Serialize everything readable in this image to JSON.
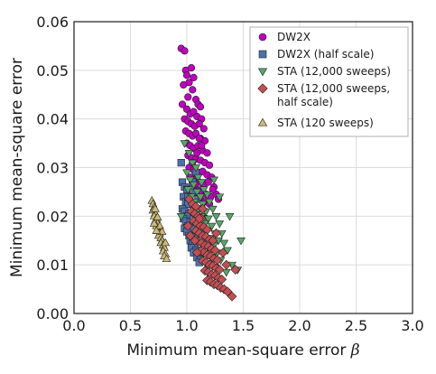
{
  "chart_data": {
    "type": "scatter",
    "xlabel": "Minimum mean-square error",
    "xlabel_symbol": "β",
    "ylabel": "Minimum mean-square error",
    "xlim": [
      0.0,
      3.0
    ],
    "ylim": [
      0.0,
      0.06
    ],
    "x_ticks": [
      "0.0",
      "0.5",
      "1.0",
      "1.5",
      "2.0",
      "2.5",
      "3.0"
    ],
    "y_ticks": [
      "0.00",
      "0.01",
      "0.02",
      "0.03",
      "0.04",
      "0.05",
      "0.06"
    ],
    "grid": true,
    "legend_position": "top-right",
    "series": [
      {
        "name": "DW2X",
        "marker": "circle",
        "color": "#bf00bf",
        "points": [
          [
            0.95,
            0.0545
          ],
          [
            0.98,
            0.054
          ],
          [
            0.99,
            0.05
          ],
          [
            1.0,
            0.049
          ],
          [
            1.02,
            0.0475
          ],
          [
            1.04,
            0.0505
          ],
          [
            1.05,
            0.046
          ],
          [
            1.06,
            0.0485
          ],
          [
            1.01,
            0.0445
          ],
          [
            0.97,
            0.047
          ],
          [
            1.08,
            0.044
          ],
          [
            1.1,
            0.043
          ],
          [
            1.12,
            0.0425
          ],
          [
            0.96,
            0.043
          ],
          [
            1.0,
            0.042
          ],
          [
            1.03,
            0.041
          ],
          [
            1.06,
            0.0415
          ],
          [
            1.09,
            0.0405
          ],
          [
            1.13,
            0.04
          ],
          [
            0.98,
            0.04
          ],
          [
            1.01,
            0.0395
          ],
          [
            1.04,
            0.039
          ],
          [
            1.07,
            0.0385
          ],
          [
            1.11,
            0.039
          ],
          [
            1.15,
            0.038
          ],
          [
            0.99,
            0.0375
          ],
          [
            1.02,
            0.037
          ],
          [
            1.05,
            0.0365
          ],
          [
            1.08,
            0.037
          ],
          [
            1.12,
            0.036
          ],
          [
            1.16,
            0.0355
          ],
          [
            1.0,
            0.035
          ],
          [
            1.03,
            0.0345
          ],
          [
            1.06,
            0.034
          ],
          [
            1.1,
            0.0345
          ],
          [
            1.14,
            0.0335
          ],
          [
            1.18,
            0.033
          ],
          [
            1.01,
            0.0325
          ],
          [
            1.04,
            0.032
          ],
          [
            1.08,
            0.0318
          ],
          [
            1.12,
            0.0315
          ],
          [
            1.16,
            0.031
          ],
          [
            1.2,
            0.0305
          ],
          [
            1.02,
            0.03
          ],
          [
            1.06,
            0.0295
          ],
          [
            1.1,
            0.029
          ],
          [
            1.14,
            0.0292
          ],
          [
            1.18,
            0.0285
          ],
          [
            1.22,
            0.028
          ],
          [
            1.07,
            0.0275
          ],
          [
            1.11,
            0.027
          ],
          [
            1.15,
            0.0265
          ],
          [
            1.19,
            0.027
          ],
          [
            1.24,
            0.026
          ],
          [
            1.09,
            0.0255
          ],
          [
            1.13,
            0.025
          ],
          [
            1.17,
            0.0245
          ],
          [
            1.21,
            0.024
          ],
          [
            1.26,
            0.0245
          ],
          [
            1.12,
            0.0235
          ],
          [
            1.16,
            0.023
          ],
          [
            1.2,
            0.0225
          ],
          [
            1.05,
            0.031
          ],
          [
            1.09,
            0.033
          ],
          [
            1.13,
            0.0345
          ],
          [
            1.03,
            0.028
          ],
          [
            1.07,
            0.0265
          ],
          [
            1.23,
            0.0255
          ],
          [
            1.28,
            0.0235
          ],
          [
            1.11,
            0.036
          ]
        ]
      },
      {
        "name": "DW2X (half scale)",
        "marker": "square",
        "color": "#4c72b0",
        "points": [
          [
            0.95,
            0.031
          ],
          [
            0.96,
            0.027
          ],
          [
            0.98,
            0.026
          ],
          [
            1.0,
            0.0255
          ],
          [
            0.97,
            0.024
          ],
          [
            0.99,
            0.023
          ],
          [
            1.01,
            0.0225
          ],
          [
            0.96,
            0.0215
          ],
          [
            0.98,
            0.021
          ],
          [
            1.02,
            0.0205
          ],
          [
            1.0,
            0.02
          ],
          [
            0.97,
            0.0195
          ],
          [
            0.99,
            0.019
          ],
          [
            1.03,
            0.0188
          ],
          [
            1.01,
            0.018
          ],
          [
            0.98,
            0.0175
          ],
          [
            1.04,
            0.0172
          ],
          [
            1.0,
            0.0168
          ],
          [
            1.02,
            0.016
          ],
          [
            1.06,
            0.0158
          ],
          [
            1.03,
            0.015
          ],
          [
            1.05,
            0.0145
          ],
          [
            1.07,
            0.014
          ],
          [
            1.04,
            0.0135
          ],
          [
            1.08,
            0.013
          ],
          [
            1.06,
            0.0125
          ],
          [
            1.1,
            0.012
          ],
          [
            1.09,
            0.0115
          ],
          [
            1.12,
            0.011
          ],
          [
            1.11,
            0.0105
          ],
          [
            1.05,
            0.027
          ],
          [
            1.08,
            0.029
          ],
          [
            1.07,
            0.025
          ],
          [
            1.1,
            0.0235
          ],
          [
            1.13,
            0.0215
          ],
          [
            1.15,
            0.0195
          ],
          [
            1.14,
            0.017
          ],
          [
            1.01,
            0.024
          ],
          [
            1.06,
            0.0215
          ],
          [
            1.09,
            0.019
          ]
        ]
      },
      {
        "name": "STA (12,000 sweeps)",
        "marker": "triangle-down",
        "color": "#55a868",
        "points": [
          [
            0.98,
            0.035
          ],
          [
            1.02,
            0.033
          ],
          [
            1.05,
            0.031
          ],
          [
            1.0,
            0.029
          ],
          [
            1.08,
            0.03
          ],
          [
            1.03,
            0.0275
          ],
          [
            1.1,
            0.028
          ],
          [
            1.06,
            0.0265
          ],
          [
            1.13,
            0.027
          ],
          [
            1.01,
            0.0255
          ],
          [
            1.09,
            0.025
          ],
          [
            1.15,
            0.0255
          ],
          [
            1.04,
            0.024
          ],
          [
            1.12,
            0.024
          ],
          [
            1.18,
            0.0245
          ],
          [
            1.07,
            0.023
          ],
          [
            1.14,
            0.0225
          ],
          [
            1.2,
            0.023
          ],
          [
            1.1,
            0.0215
          ],
          [
            1.17,
            0.021
          ],
          [
            1.23,
            0.0215
          ],
          [
            1.13,
            0.02
          ],
          [
            1.19,
            0.0195
          ],
          [
            1.26,
            0.02
          ],
          [
            1.16,
            0.0185
          ],
          [
            1.22,
            0.018
          ],
          [
            1.29,
            0.0185
          ],
          [
            1.18,
            0.017
          ],
          [
            1.25,
            0.0165
          ],
          [
            1.31,
            0.0165
          ],
          [
            1.21,
            0.0155
          ],
          [
            1.28,
            0.015
          ],
          [
            1.15,
            0.0145
          ],
          [
            1.24,
            0.014
          ],
          [
            1.33,
            0.0145
          ],
          [
            1.2,
            0.013
          ],
          [
            1.27,
            0.0125
          ],
          [
            1.36,
            0.013
          ],
          [
            1.22,
            0.0115
          ],
          [
            1.3,
            0.011
          ],
          [
            1.4,
            0.01
          ],
          [
            1.45,
            0.009
          ],
          [
            1.18,
            0.01
          ],
          [
            1.25,
            0.0095
          ],
          [
            1.35,
            0.0085
          ],
          [
            1.48,
            0.015
          ],
          [
            1.24,
            0.0275
          ],
          [
            1.29,
            0.024
          ],
          [
            1.38,
            0.02
          ],
          [
            0.95,
            0.02
          ]
        ]
      },
      {
        "name": "STA (12,000 sweeps,\nhalf scale)",
        "marker": "diamond",
        "color": "#c44e52",
        "points": [
          [
            1.02,
            0.0235
          ],
          [
            1.05,
            0.0225
          ],
          [
            1.08,
            0.022
          ],
          [
            1.04,
            0.021
          ],
          [
            1.07,
            0.0205
          ],
          [
            1.1,
            0.02
          ],
          [
            1.13,
            0.0195
          ],
          [
            1.06,
            0.019
          ],
          [
            1.09,
            0.0185
          ],
          [
            1.12,
            0.018
          ],
          [
            1.15,
            0.0178
          ],
          [
            1.18,
            0.0172
          ],
          [
            1.08,
            0.017
          ],
          [
            1.11,
            0.0165
          ],
          [
            1.14,
            0.016
          ],
          [
            1.17,
            0.0158
          ],
          [
            1.2,
            0.0152
          ],
          [
            1.23,
            0.015
          ],
          [
            1.1,
            0.0148
          ],
          [
            1.13,
            0.0145
          ],
          [
            1.16,
            0.014
          ],
          [
            1.19,
            0.0138
          ],
          [
            1.22,
            0.0133
          ],
          [
            1.25,
            0.013
          ],
          [
            1.12,
            0.0128
          ],
          [
            1.15,
            0.0125
          ],
          [
            1.18,
            0.012
          ],
          [
            1.21,
            0.0118
          ],
          [
            1.24,
            0.0113
          ],
          [
            1.27,
            0.011
          ],
          [
            1.14,
            0.0108
          ],
          [
            1.17,
            0.0105
          ],
          [
            1.2,
            0.01
          ],
          [
            1.23,
            0.0098
          ],
          [
            1.26,
            0.0093
          ],
          [
            1.29,
            0.009
          ],
          [
            1.16,
            0.0088
          ],
          [
            1.19,
            0.0085
          ],
          [
            1.22,
            0.008
          ],
          [
            1.25,
            0.0078
          ],
          [
            1.28,
            0.0073
          ],
          [
            1.31,
            0.007
          ],
          [
            1.18,
            0.0068
          ],
          [
            1.21,
            0.0065
          ],
          [
            1.24,
            0.006
          ],
          [
            1.27,
            0.0058
          ],
          [
            1.3,
            0.0053
          ],
          [
            1.33,
            0.005
          ],
          [
            1.36,
            0.0045
          ],
          [
            1.4,
            0.0035
          ],
          [
            1.43,
            0.009
          ],
          [
            1.11,
            0.0195
          ],
          [
            1.14,
            0.0215
          ],
          [
            1.26,
            0.0165
          ],
          [
            1.32,
            0.0125
          ],
          [
            1.07,
            0.015
          ],
          [
            1.09,
            0.0125
          ],
          [
            1.35,
            0.01
          ],
          [
            1.01,
            0.018
          ],
          [
            1.03,
            0.016
          ]
        ]
      },
      {
        "name": "STA (120 sweeps)",
        "marker": "triangle-up",
        "color": "#ccb974",
        "points": [
          [
            0.69,
            0.0232
          ],
          [
            0.7,
            0.0225
          ],
          [
            0.71,
            0.0218
          ],
          [
            0.7,
            0.0212
          ],
          [
            0.72,
            0.0206
          ],
          [
            0.71,
            0.02
          ],
          [
            0.73,
            0.0195
          ],
          [
            0.72,
            0.019
          ],
          [
            0.74,
            0.0185
          ],
          [
            0.73,
            0.018
          ],
          [
            0.75,
            0.0175
          ],
          [
            0.74,
            0.017
          ],
          [
            0.76,
            0.0165
          ],
          [
            0.75,
            0.016
          ],
          [
            0.77,
            0.0155
          ],
          [
            0.78,
            0.015
          ],
          [
            0.77,
            0.0145
          ],
          [
            0.79,
            0.014
          ],
          [
            0.8,
            0.0135
          ],
          [
            0.79,
            0.0128
          ],
          [
            0.81,
            0.0122
          ],
          [
            0.8,
            0.0118
          ],
          [
            0.82,
            0.0112
          ],
          [
            0.72,
            0.0215
          ],
          [
            0.74,
            0.0198
          ],
          [
            0.76,
            0.018
          ],
          [
            0.78,
            0.0168
          ],
          [
            0.71,
            0.0185
          ],
          [
            0.73,
            0.017
          ],
          [
            0.81,
            0.0145
          ]
        ]
      }
    ]
  }
}
